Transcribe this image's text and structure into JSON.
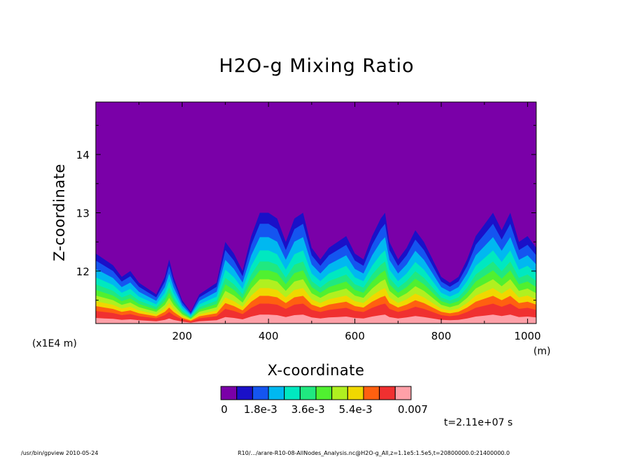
{
  "chart_data": {
    "type": "heatmap",
    "title": "H2O-g Mixing Ratio",
    "xlabel": "X-coordinate",
    "ylabel": "Z-coordinate",
    "x_unit": "(m)",
    "y_unit": "(x1E4 m)",
    "xlim": [
      0,
      1020
    ],
    "ylim": [
      11.1,
      14.9
    ],
    "x_ticks": [
      200,
      400,
      600,
      800,
      1000
    ],
    "y_ticks": [
      12,
      13,
      14
    ],
    "colorbar": {
      "colors": [
        "#7a00a8",
        "#1a10c8",
        "#1455f0",
        "#00b8f0",
        "#00e8c0",
        "#20e880",
        "#50f030",
        "#b0f020",
        "#f0d800",
        "#ff6010",
        "#f03030",
        "#ffa0a8"
      ],
      "tick_labels": [
        "0",
        "1.8e-3",
        "3.6e-3",
        "5.4e-3",
        "0.007"
      ],
      "min": 0,
      "max": 0.007
    },
    "cloud_top_profile": {
      "x": [
        0,
        20,
        40,
        60,
        80,
        100,
        120,
        140,
        160,
        170,
        180,
        200,
        220,
        240,
        260,
        280,
        300,
        320,
        340,
        360,
        380,
        400,
        420,
        440,
        460,
        480,
        500,
        520,
        540,
        560,
        580,
        600,
        620,
        640,
        660,
        670,
        680,
        700,
        720,
        740,
        760,
        780,
        800,
        820,
        840,
        860,
        880,
        900,
        920,
        940,
        960,
        980,
        1000,
        1020
      ],
      "z": [
        12.3,
        12.2,
        12.1,
        11.9,
        12.0,
        11.8,
        11.7,
        11.6,
        11.9,
        12.2,
        11.9,
        11.5,
        11.3,
        11.6,
        11.7,
        11.8,
        12.5,
        12.3,
        12.0,
        12.6,
        13.0,
        13.0,
        12.9,
        12.5,
        12.9,
        13.0,
        12.4,
        12.2,
        12.4,
        12.5,
        12.6,
        12.3,
        12.2,
        12.6,
        12.9,
        13.0,
        12.5,
        12.2,
        12.4,
        12.7,
        12.5,
        12.2,
        11.9,
        11.8,
        11.9,
        12.2,
        12.6,
        12.8,
        13.0,
        12.7,
        13.0,
        12.5,
        12.6,
        12.4
      ]
    },
    "grid": false
  },
  "annotations": {
    "time": "t=2.11e+07 s",
    "footer_left": "/usr/bin/gpview   2010-05-24",
    "footer_right": "R10/.../arare-R10-08-AllNodes_Analysis.nc@H2O-g_All,z=1.1e5:1.5e5,t=20800000.0:21400000.0"
  }
}
